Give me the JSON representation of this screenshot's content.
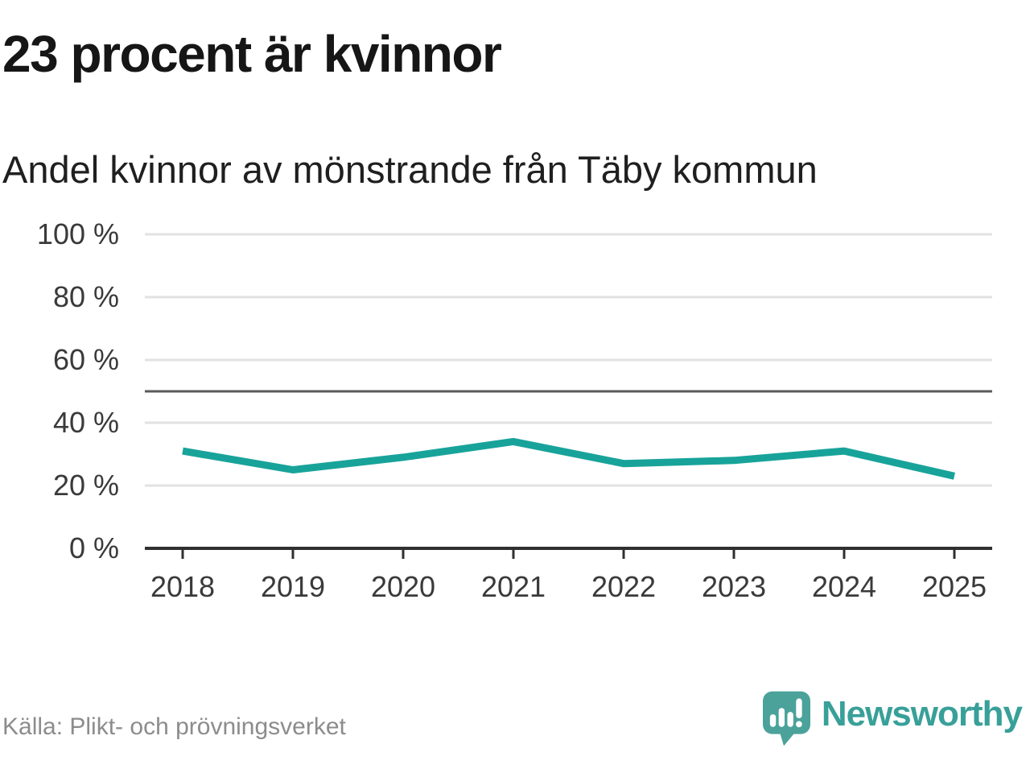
{
  "chart_data": {
    "type": "line",
    "title": "23 procent är kvinnor",
    "subtitle": "Andel kvinnor av mönstrande från Täby kommun",
    "categories": [
      2018,
      2019,
      2020,
      2021,
      2022,
      2023,
      2024,
      2025
    ],
    "values": [
      31,
      25,
      29,
      34,
      27,
      28,
      31,
      23
    ],
    "xlabel": "",
    "ylabel": "",
    "ylim": [
      0,
      100
    ],
    "yticks": [
      0,
      20,
      40,
      60,
      80,
      100
    ],
    "ytick_suffix": " %",
    "refline_y": 50,
    "grid": "horizontal",
    "legend": "none",
    "colors": {
      "line": "#18a39a",
      "grid": "#e2e2e2",
      "refline": "#5a5a5a",
      "axis": "#303030",
      "tick_label": "#3a3a3a"
    }
  },
  "footer": {
    "source": "Källa: Plikt- och prövningsverket",
    "brand": "Newsworthy",
    "brand_color": "#38a098",
    "brand_icon_color": "#4aa29a"
  }
}
